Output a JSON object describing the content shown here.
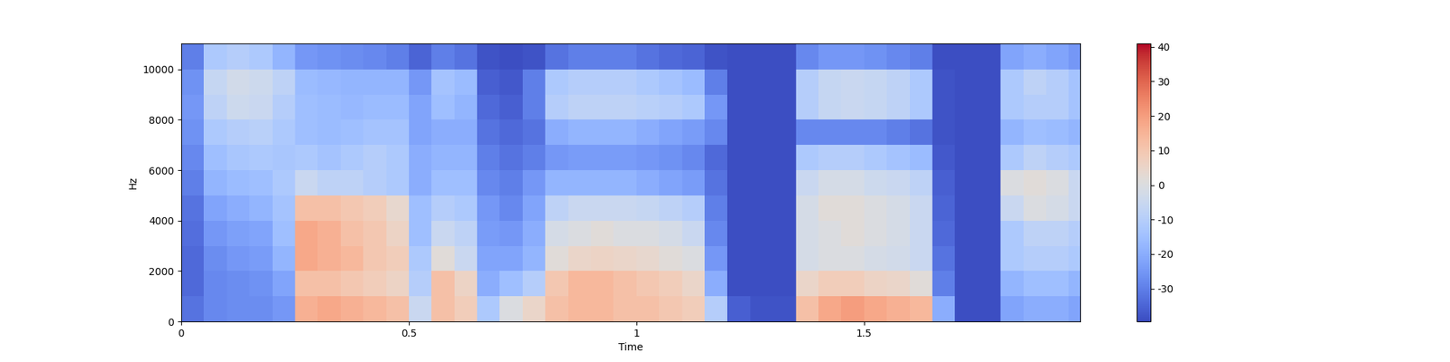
{
  "chart_data": {
    "type": "heatmap",
    "x_label": "Time",
    "y_label": "Hz",
    "xlim": [
      0,
      1.975
    ],
    "xticks": [
      0,
      0.5,
      1,
      1.5
    ],
    "ylim": [
      0,
      11025
    ],
    "yticks": [
      0,
      2000,
      4000,
      6000,
      8000,
      10000
    ],
    "colorbar_range": [
      -39.5,
      41
    ],
    "colorbar_ticks": [
      -30,
      -20,
      -10,
      0,
      10,
      20,
      30,
      40
    ],
    "color": "coolwarm",
    "time_edges": [
      0,
      0.05,
      0.1,
      0.15,
      0.2,
      0.25,
      0.3,
      0.35,
      0.4,
      0.45,
      0.5,
      0.55,
      0.6,
      0.65,
      0.7,
      0.75,
      0.8,
      0.85,
      0.9,
      0.95,
      1.0,
      1.05,
      1.1,
      1.15,
      1.2,
      1.25,
      1.3,
      1.35,
      1.4,
      1.45,
      1.5,
      1.55,
      1.6,
      1.65,
      1.7,
      1.75,
      1.8,
      1.85,
      1.9,
      1.95,
      1.975
    ],
    "freq_edges": [
      0,
      1000,
      2000,
      3000,
      4000,
      5000,
      6000,
      7000,
      8000,
      9000,
      10000,
      11025
    ],
    "cells": [
      [
        -32,
        -34,
        -34,
        -33,
        -32,
        -30,
        -28,
        -26,
        -25,
        -26,
        -30
      ],
      [
        -28,
        -28,
        -27,
        -25,
        -22,
        -18,
        -15,
        -12,
        -8,
        -6,
        -12
      ],
      [
        -27,
        -27,
        -25,
        -23,
        -20,
        -16,
        -13,
        -10,
        -4,
        -3,
        -10
      ],
      [
        -27,
        -26,
        -24,
        -22,
        -18,
        -15,
        -12,
        -9,
        -5,
        -4,
        -12
      ],
      [
        -25,
        -22,
        -18,
        -15,
        -14,
        -12,
        -13,
        -12,
        -10,
        -8,
        -18
      ],
      [
        16,
        12,
        18,
        18,
        12,
        -5,
        -12,
        -15,
        -15,
        -16,
        -25
      ],
      [
        18,
        12,
        16,
        16,
        12,
        -8,
        -14,
        -16,
        -16,
        -17,
        -26
      ],
      [
        16,
        10,
        14,
        12,
        10,
        -8,
        -12,
        -15,
        -17,
        -18,
        -27
      ],
      [
        14,
        8,
        10,
        10,
        8,
        -10,
        -10,
        -14,
        -16,
        -18,
        -28
      ],
      [
        12,
        6,
        8,
        6,
        4,
        -12,
        -12,
        -14,
        -16,
        -18,
        -30
      ],
      [
        -5,
        -10,
        -12,
        -15,
        -15,
        -20,
        -20,
        -22,
        -22,
        -25,
        -35
      ],
      [
        12,
        12,
        2,
        -5,
        -10,
        -15,
        -18,
        -20,
        -15,
        -14,
        -30
      ],
      [
        8,
        6,
        -5,
        -8,
        -12,
        -15,
        -18,
        -20,
        -18,
        -16,
        -32
      ],
      [
        -12,
        -20,
        -22,
        -24,
        -25,
        -28,
        -30,
        -32,
        -34,
        -36,
        -38
      ],
      [
        0,
        -15,
        -22,
        -25,
        -28,
        -30,
        -32,
        -34,
        -36,
        -37,
        -39
      ],
      [
        5,
        -10,
        -18,
        -20,
        -22,
        -25,
        -30,
        -32,
        -30,
        -30,
        -38
      ],
      [
        12,
        10,
        2,
        -2,
        -8,
        -18,
        -25,
        -20,
        -10,
        -12,
        -32
      ],
      [
        14,
        14,
        5,
        0,
        -5,
        -18,
        -24,
        -18,
        -8,
        -10,
        -30
      ],
      [
        14,
        14,
        6,
        2,
        -5,
        -18,
        -24,
        -18,
        -8,
        -10,
        -30
      ],
      [
        12,
        12,
        5,
        0,
        -5,
        -18,
        -24,
        -18,
        -8,
        -10,
        -30
      ],
      [
        12,
        10,
        4,
        0,
        -6,
        -20,
        -25,
        -20,
        -9,
        -12,
        -32
      ],
      [
        10,
        8,
        2,
        -2,
        -8,
        -22,
        -26,
        -22,
        -10,
        -14,
        -34
      ],
      [
        8,
        5,
        0,
        -5,
        -10,
        -24,
        -28,
        -24,
        -12,
        -16,
        -35
      ],
      [
        -10,
        -20,
        -25,
        -28,
        -30,
        -32,
        -34,
        -28,
        -25,
        -30,
        -38
      ],
      [
        -36,
        -39,
        -39,
        -39,
        -39,
        -39,
        -39,
        -39,
        -39,
        -39,
        -39
      ],
      [
        -38,
        -39,
        -39,
        -39,
        -39,
        -39,
        -39,
        -39,
        -39,
        -39,
        -39
      ],
      [
        -38,
        -39,
        -39,
        -39,
        -39,
        -39,
        -39,
        -39,
        -39,
        -39,
        -39
      ],
      [
        12,
        5,
        -2,
        -2,
        -2,
        -5,
        -12,
        -28,
        -10,
        -10,
        -28
      ],
      [
        18,
        8,
        0,
        0,
        2,
        -2,
        -10,
        -28,
        -6,
        -6,
        -25
      ],
      [
        20,
        8,
        0,
        2,
        2,
        -2,
        -10,
        -28,
        -5,
        -5,
        -25
      ],
      [
        18,
        6,
        -2,
        0,
        0,
        -4,
        -12,
        -28,
        -6,
        -6,
        -26
      ],
      [
        16,
        5,
        -3,
        -2,
        -2,
        -5,
        -14,
        -30,
        -8,
        -8,
        -28
      ],
      [
        14,
        2,
        -5,
        -5,
        -5,
        -8,
        -16,
        -32,
        -12,
        -12,
        -30
      ],
      [
        -20,
        -30,
        -32,
        -34,
        -35,
        -36,
        -37,
        -38,
        -38,
        -38,
        -39
      ],
      [
        -39,
        -39,
        -39,
        -39,
        -39,
        -39,
        -39,
        -39,
        -39,
        -39,
        -39
      ],
      [
        -39,
        -39,
        -39,
        -39,
        -39,
        -39,
        -39,
        -39,
        -39,
        -39,
        -39
      ],
      [
        -22,
        -18,
        -12,
        -12,
        -5,
        0,
        -12,
        -18,
        -12,
        -12,
        -22
      ],
      [
        -20,
        -15,
        -10,
        -8,
        0,
        2,
        -8,
        -15,
        -10,
        -8,
        -20
      ],
      [
        -20,
        -15,
        -10,
        -8,
        -2,
        0,
        -10,
        -16,
        -10,
        -10,
        -22
      ],
      [
        -22,
        -18,
        -12,
        -10,
        -5,
        -5,
        -12,
        -18,
        -14,
        -14,
        -25
      ]
    ]
  }
}
